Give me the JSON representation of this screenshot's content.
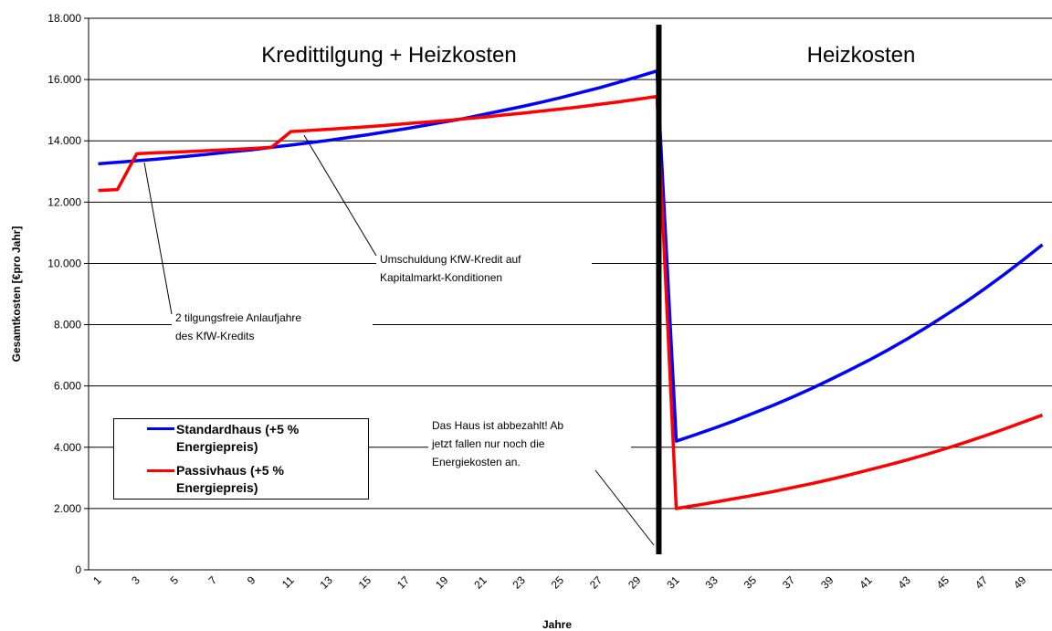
{
  "chart_data": {
    "type": "line",
    "xlabel": "Jahre",
    "ylabel": "Gesamtkosten [€pro Jahr]",
    "categories": [
      1,
      null,
      3,
      null,
      5,
      null,
      7,
      null,
      9,
      null,
      11,
      null,
      13,
      null,
      15,
      null,
      17,
      null,
      19,
      null,
      21,
      null,
      23,
      null,
      25,
      null,
      27,
      null,
      29,
      null,
      31,
      null,
      33,
      null,
      35,
      null,
      37,
      null,
      39,
      null,
      41,
      null,
      43,
      null,
      45,
      null,
      47,
      null,
      49,
      null
    ],
    "series": [
      {
        "name": "Standardhaus (+5 % Energiepreis)",
        "color": "#0000ff",
        "values": [
          13250,
          13300,
          13350,
          13400,
          13460,
          13520,
          13580,
          13650,
          13710,
          13790,
          13860,
          13940,
          14020,
          14110,
          14200,
          14300,
          14400,
          14510,
          14620,
          14730,
          14860,
          14990,
          15120,
          15260,
          15410,
          15570,
          15730,
          15910,
          16090,
          16280,
          4200,
          4410,
          4630,
          4860,
          5110,
          5360,
          5630,
          5910,
          6210,
          6520,
          6840,
          7180,
          7540,
          7920,
          8320,
          8730,
          9170,
          9630,
          10110,
          10610
        ]
      },
      {
        "name": "Passivhaus (+5 % Energiepreis)",
        "color": "#ff0000",
        "values": [
          12380,
          12410,
          13580,
          13610,
          13630,
          13660,
          13690,
          13720,
          13750,
          13790,
          14300,
          14340,
          14380,
          14420,
          14460,
          14510,
          14560,
          14610,
          14660,
          14720,
          14770,
          14840,
          14900,
          14970,
          15040,
          15110,
          15190,
          15270,
          15360,
          15450,
          2000,
          2100,
          2210,
          2320,
          2430,
          2550,
          2680,
          2810,
          2950,
          3100,
          3260,
          3420,
          3590,
          3770,
          3960,
          4160,
          4370,
          4590,
          4820,
          5050
        ]
      }
    ],
    "ylim": [
      0,
      18000
    ],
    "yticks": [
      0,
      {
        "value": 2000,
        "label": "2.000"
      },
      {
        "value": 4000,
        "label": "4.000"
      },
      {
        "value": 6000,
        "label": "6.000"
      },
      {
        "value": 8000,
        "label": "8.000"
      },
      {
        "value": 10000,
        "label": "10.000"
      },
      {
        "value": 12000,
        "label": "12.000"
      },
      {
        "value": 14000,
        "label": "14.000"
      },
      {
        "value": 16000,
        "label": "16.000"
      },
      {
        "value": 18000,
        "label": "18.000"
      }
    ],
    "grid": true,
    "legend": "lower left",
    "annotations": {
      "phase1": "Kredittilgung + Heizkosten",
      "phase2": "Heizkosten",
      "refinance": [
        "Umschuldung KfW-Kredit auf",
        "Kapitalmarkt-Konditionen"
      ],
      "grace": [
        "2 tilgungsfreie Anlaufjahre",
        "des KfW-Kredits"
      ],
      "paidoff": [
        "Das Haus ist abbezahlt! Ab",
        "jetzt fallen nur noch die",
        "Energiekosten an."
      ]
    }
  }
}
